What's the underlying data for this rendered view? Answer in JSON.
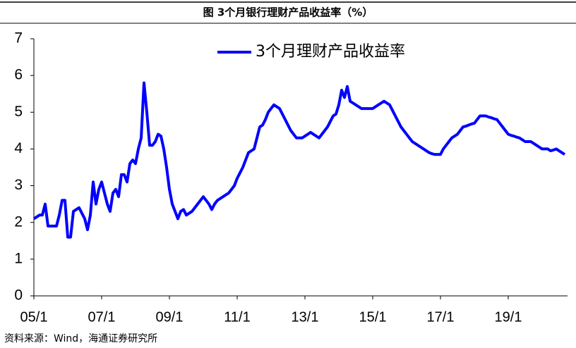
{
  "chart_data": {
    "type": "line",
    "title": "图 3个月银行理财产品收益率（%）",
    "source": "资料来源：Wind，海通证券研究所",
    "legend": "top",
    "ylim": [
      0,
      7
    ],
    "yticks": [
      0,
      1,
      2,
      3,
      4,
      5,
      6,
      7
    ],
    "xticks": [
      "05/1",
      "07/1",
      "09/1",
      "11/1",
      "13/1",
      "15/1",
      "17/1",
      "19/1"
    ],
    "categories": [
      "05/1",
      "05/2",
      "05/3",
      "05/4",
      "05/5",
      "05/6",
      "05/7",
      "05/8",
      "05/9",
      "05/10",
      "05/11",
      "05/12",
      "06/1",
      "06/2",
      "06/3",
      "06/4",
      "06/5",
      "06/6",
      "06/7",
      "06/8",
      "06/9",
      "06/10",
      "06/11",
      "06/12",
      "07/1",
      "07/2",
      "07/3",
      "07/4",
      "07/5",
      "07/6",
      "07/7",
      "07/8",
      "07/9",
      "07/10",
      "07/11",
      "07/12",
      "08/1",
      "08/2",
      "08/3",
      "08/4",
      "08/5",
      "08/6",
      "08/7",
      "08/8",
      "08/9",
      "08/10",
      "08/11",
      "08/12",
      "09/1",
      "09/2",
      "09/3",
      "09/4",
      "09/5",
      "09/6",
      "09/7",
      "09/8",
      "09/9",
      "09/10",
      "09/11",
      "09/12",
      "10/1",
      "10/2",
      "10/3",
      "10/4",
      "10/5",
      "10/6",
      "10/7",
      "10/8",
      "10/9",
      "10/10",
      "10/11",
      "10/12",
      "11/1",
      "11/2",
      "11/3",
      "11/4",
      "11/5",
      "11/6",
      "11/7",
      "11/8",
      "11/9",
      "11/10",
      "11/11",
      "11/12",
      "12/1",
      "12/2",
      "12/3",
      "12/4",
      "12/5",
      "12/6",
      "12/7",
      "12/8",
      "12/9",
      "12/10",
      "12/11",
      "12/12",
      "13/1",
      "13/2",
      "13/3",
      "13/4",
      "13/5",
      "13/6",
      "13/7",
      "13/8",
      "13/9",
      "13/10",
      "13/11",
      "13/12",
      "14/1",
      "14/2",
      "14/3",
      "14/4",
      "14/5",
      "14/6",
      "14/7",
      "14/8",
      "14/9",
      "14/10",
      "14/11",
      "14/12",
      "15/1",
      "15/2",
      "15/3",
      "15/4",
      "15/5",
      "15/6",
      "15/7",
      "15/8",
      "15/9",
      "15/10",
      "15/11",
      "15/12",
      "16/1",
      "16/2",
      "16/3",
      "16/4",
      "16/5",
      "16/6",
      "16/7",
      "16/8",
      "16/9",
      "16/10",
      "16/11",
      "16/12",
      "17/1",
      "17/2",
      "17/3",
      "17/4",
      "17/5",
      "17/6",
      "17/7",
      "17/8",
      "17/9",
      "17/10",
      "17/11",
      "17/12",
      "18/1",
      "18/2",
      "18/3",
      "18/4",
      "18/5",
      "18/6",
      "18/7",
      "18/8",
      "18/9",
      "18/10",
      "18/11",
      "18/12",
      "19/1",
      "19/2",
      "19/3",
      "19/4",
      "19/5",
      "19/6",
      "19/7",
      "19/8",
      "19/9",
      "19/10",
      "19/11",
      "19/12",
      "20/1",
      "20/2",
      "20/3",
      "20/4",
      "20/5",
      "20/6",
      "20/7",
      "20/8",
      "20/9"
    ],
    "series": [
      {
        "name": "3个月理财产品收益率",
        "color": "#0000ff",
        "values": [
          2.1,
          2.15,
          2.2,
          2.2,
          2.5,
          1.9,
          1.9,
          1.9,
          1.9,
          2.2,
          2.6,
          2.6,
          1.6,
          1.6,
          2.3,
          2.35,
          2.4,
          2.25,
          2.1,
          1.8,
          2.2,
          3.1,
          2.5,
          2.9,
          3.1,
          2.8,
          2.5,
          2.3,
          2.8,
          2.9,
          2.7,
          3.3,
          3.3,
          3.1,
          3.6,
          3.7,
          3.6,
          4.0,
          4.3,
          5.8,
          5.0,
          4.1,
          4.1,
          4.2,
          4.4,
          4.35,
          4.0,
          3.5,
          2.9,
          2.5,
          2.3,
          2.1,
          2.3,
          2.35,
          2.2,
          2.25,
          2.3,
          2.4,
          2.5,
          2.6,
          2.7,
          2.6,
          2.5,
          2.35,
          2.5,
          2.6,
          2.65,
          2.7,
          2.75,
          2.8,
          2.9,
          3.0,
          3.2,
          3.35,
          3.5,
          3.7,
          3.9,
          3.95,
          4.0,
          4.3,
          4.6,
          4.65,
          4.8,
          5.0,
          5.1,
          5.2,
          5.15,
          5.1,
          4.95,
          4.8,
          4.65,
          4.5,
          4.4,
          4.3,
          4.3,
          4.3,
          4.35,
          4.4,
          4.45,
          4.4,
          4.35,
          4.3,
          4.4,
          4.5,
          4.6,
          4.75,
          4.9,
          4.95,
          5.2,
          5.6,
          5.4,
          5.7,
          5.3,
          5.25,
          5.2,
          5.15,
          5.1,
          5.1,
          5.1,
          5.1,
          5.1,
          5.15,
          5.2,
          5.25,
          5.3,
          5.25,
          5.2,
          5.05,
          4.9,
          4.75,
          4.6,
          4.5,
          4.4,
          4.3,
          4.2,
          4.15,
          4.1,
          4.05,
          4.0,
          3.95,
          3.9,
          3.87,
          3.85,
          3.85,
          3.85,
          4.0,
          4.1,
          4.2,
          4.3,
          4.35,
          4.4,
          4.5,
          4.6,
          4.62,
          4.65,
          4.68,
          4.7,
          4.8,
          4.9,
          4.9,
          4.9,
          4.87,
          4.85,
          4.82,
          4.8,
          4.7,
          4.6,
          4.5,
          4.4,
          4.37,
          4.35,
          4.32,
          4.3,
          4.25,
          4.2,
          4.2,
          4.2,
          4.15,
          4.1,
          4.05,
          4.0,
          4.0,
          4.0,
          3.95,
          3.97,
          4.0,
          3.95,
          3.9,
          3.85
        ]
      }
    ]
  }
}
